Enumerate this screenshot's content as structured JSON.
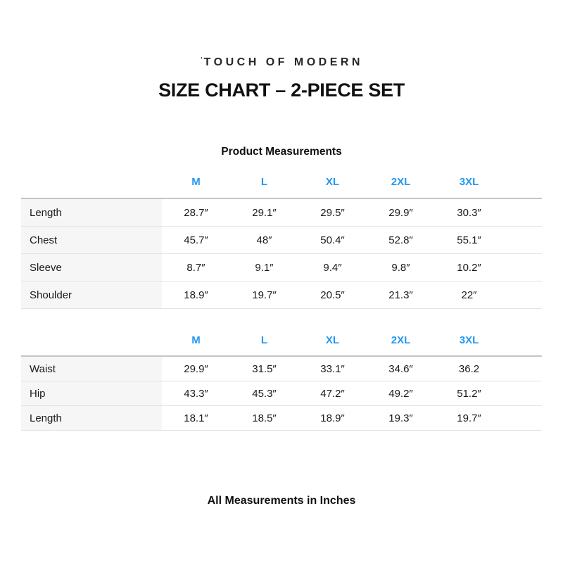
{
  "colors": {
    "accent_blue": "#2499F0",
    "text": "#1a1a1a",
    "label_cell_background": "#f6f6f6",
    "heavy_rule": "#c5c5c5",
    "light_rule": "#e3e3e3"
  },
  "header": {
    "logo_mark": "ˈ",
    "logo_text": "TOUCH OF MODERN",
    "title": "SIZE CHART – 2-PIECE SET"
  },
  "section_heading": "Product Measurements",
  "footer_note": "All Measurements in Inches",
  "chart_data": [
    {
      "type": "table",
      "title": "Product Measurements — top garment",
      "size_headers": [
        "M",
        "L",
        "XL",
        "2XL",
        "3XL"
      ],
      "rows": [
        [
          "Length",
          "28.7″",
          "29.1″",
          "29.5″",
          "29.9″",
          "30.3″"
        ],
        [
          "Chest",
          "45.7″",
          "48″",
          "50.4″",
          "52.8″",
          "55.1″"
        ],
        [
          "Sleeve",
          "8.7″",
          "9.1″",
          "9.4″",
          "9.8″",
          "10.2″"
        ],
        [
          "Shoulder",
          "18.9″",
          "19.7″",
          "20.5″",
          "21.3″",
          "22″"
        ]
      ]
    },
    {
      "type": "table",
      "title": "Product Measurements — bottom garment",
      "size_headers": [
        "M",
        "L",
        "XL",
        "2XL",
        "3XL"
      ],
      "rows": [
        [
          "Waist",
          "29.9″",
          "31.5″",
          "33.1″",
          "34.6″",
          "36.2"
        ],
        [
          "Hip",
          "43.3″",
          "45.3″",
          "47.2″",
          "49.2″",
          "51.2″"
        ],
        [
          "Length",
          "18.1″",
          "18.5″",
          "18.9″",
          "19.3″",
          "19.7″"
        ]
      ]
    }
  ]
}
